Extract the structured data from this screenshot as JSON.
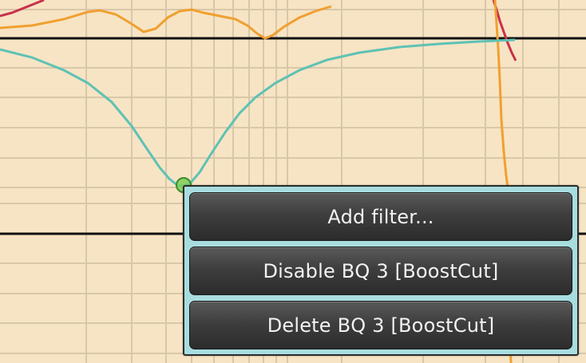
{
  "colors": {
    "plot_background": "#f7e4c4",
    "grid_line": "#d9c7aa",
    "axis_line": "#111111",
    "boost_cut_curve": "#5ec2b4",
    "orange_curve": "#f0a030",
    "red_curve": "#c8304a",
    "handle_fill": "#7dcf5a",
    "handle_stroke": "#3d8a2e",
    "menu_frame": "#a8dde0"
  },
  "icons": {
    "filter_handle": "filter-point-handle"
  },
  "context_menu": {
    "items": [
      {
        "id": "add-filter",
        "label": "Add filter..."
      },
      {
        "id": "disable-bq",
        "label": "Disable BQ 3 [BoostCut]"
      },
      {
        "id": "delete-bq",
        "label": "Delete BQ 3 [BoostCut]"
      }
    ]
  }
}
